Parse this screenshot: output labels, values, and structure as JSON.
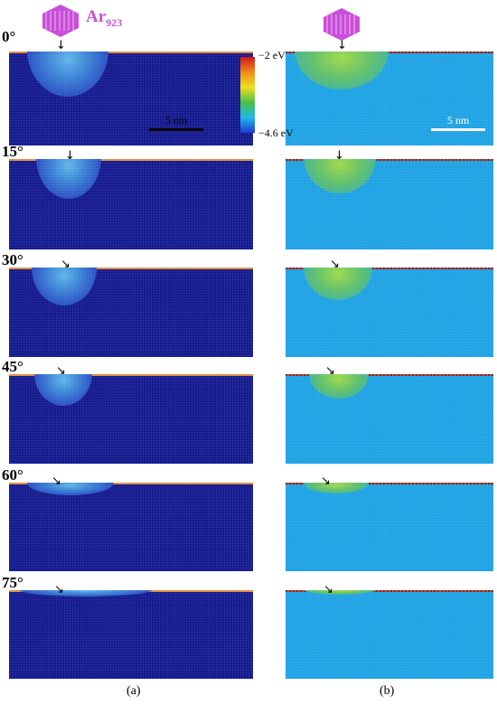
{
  "projectile": {
    "species": "Ar",
    "cluster_size": "923"
  },
  "scale_bar": {
    "label": "5 nm"
  },
  "colorbar": {
    "max_label": "−2 eV",
    "min_label": "−4.6 eV",
    "colors": [
      "#d01818",
      "#f08a1a",
      "#f0e020",
      "#48c048",
      "#20b8e8",
      "#1a3ad8"
    ]
  },
  "rows": [
    {
      "angle": "0°"
    },
    {
      "angle": "15°"
    },
    {
      "angle": "30°"
    },
    {
      "angle": "45°"
    },
    {
      "angle": "60°"
    },
    {
      "angle": "75°"
    }
  ],
  "panel_labels": {
    "a": "(a)",
    "b": "(b)"
  },
  "colors": {
    "substrate_a": "#141a8e",
    "substrate_b": "#1ea3e4",
    "cluster": "#c94ed8",
    "surface": "#e0893a"
  }
}
